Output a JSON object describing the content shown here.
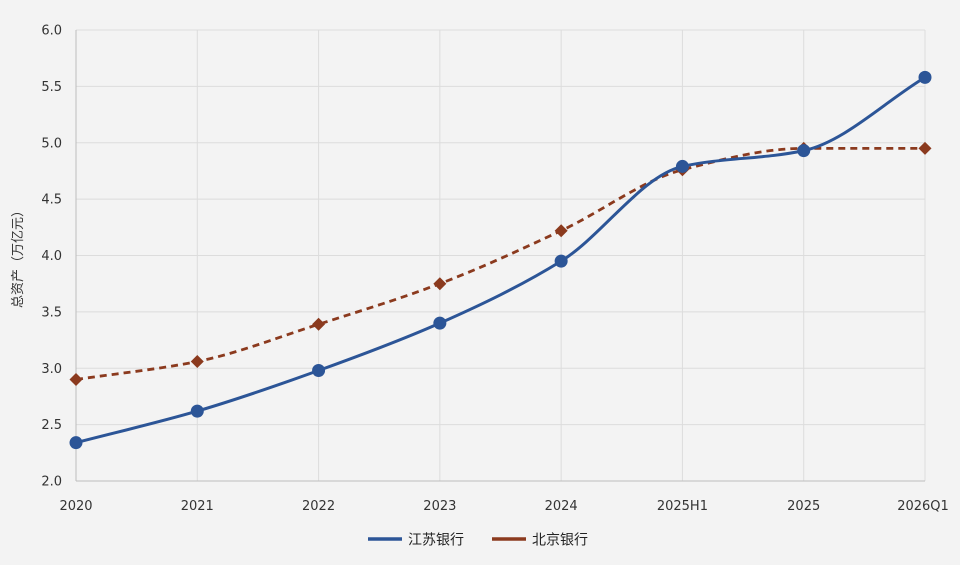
{
  "chart_data": {
    "type": "line",
    "categories": [
      "2020",
      "2021",
      "2022",
      "2023",
      "2024",
      "2025H1",
      "2025",
      "2026Q1"
    ],
    "ylabel": "总资产（万亿元）",
    "ylim": [
      2.0,
      6.0
    ],
    "yticks": [
      "2.0",
      "2.5",
      "3.0",
      "3.5",
      "4.0",
      "4.5",
      "5.0",
      "5.5",
      "6.0"
    ],
    "grid": true,
    "legend_position": "bottom-center",
    "series": [
      {
        "name": "江苏银行",
        "values": [
          2.34,
          2.62,
          2.98,
          3.4,
          3.95,
          4.79,
          4.93,
          5.58
        ],
        "color": "#2c5597",
        "marker": "circle",
        "line_style": "solid"
      },
      {
        "name": "北京银行",
        "values": [
          2.9,
          3.06,
          3.39,
          3.75,
          4.22,
          4.76,
          4.95,
          4.95
        ],
        "color": "#8b3a1e",
        "marker": "diamond",
        "line_style": "dashed"
      }
    ]
  }
}
